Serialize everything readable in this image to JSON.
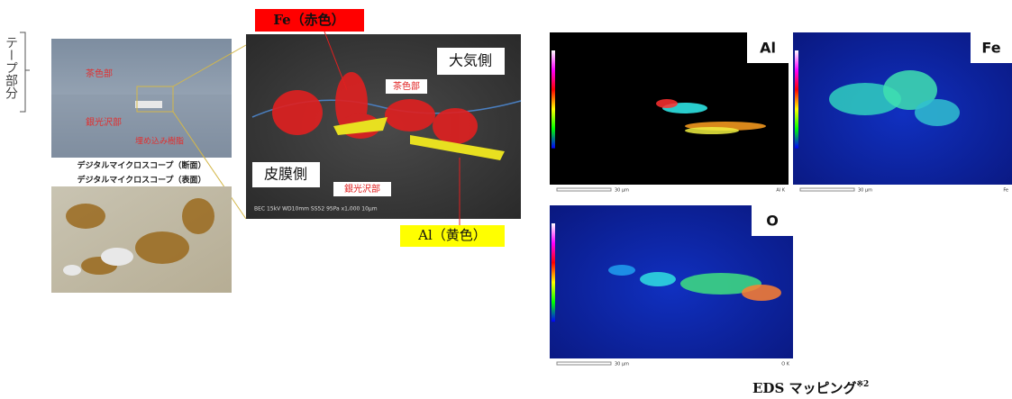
{
  "left": {
    "bracket_label": "テープ部分",
    "photo_labels": {
      "brown": "茶色部",
      "silver": "銀光沢部",
      "resin": "埋め込み樹脂"
    },
    "caption_section": "デジタルマイクロスコープ（断面）",
    "caption_surface": "デジタルマイクロスコープ（表面）"
  },
  "sem": {
    "fe_label": "Fe（赤色）",
    "air_side": "大気側",
    "brown": "茶色部",
    "film_side": "皮膜側",
    "silver": "銀光沢部",
    "al_label": "Al（黄色）",
    "info": "BEC  15kV   WD10mm   SS52   95Pa   x1,000    10μm"
  },
  "eds": {
    "maps": [
      {
        "element": "Al",
        "scale": "30 μm",
        "corner": "Al K"
      },
      {
        "element": "Fe",
        "scale": "30 μm",
        "corner": "Fe"
      },
      {
        "element": "O",
        "scale": "30 μm",
        "corner": "O K"
      }
    ],
    "caption": "EDS マッピング",
    "note": "※2"
  }
}
